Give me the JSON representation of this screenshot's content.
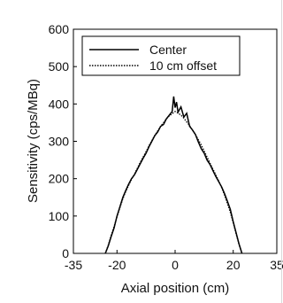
{
  "chart_data": {
    "type": "line",
    "xlabel": "Axial position (cm)",
    "ylabel": "Sensitivity (cps/MBq)",
    "xlim": [
      -35,
      35
    ],
    "ylim": [
      0,
      600
    ],
    "xticks": [
      -35,
      -20,
      0,
      20,
      35
    ],
    "yticks": [
      0,
      100,
      200,
      300,
      400,
      500,
      600
    ],
    "grid": false,
    "legend_position": "top-right",
    "series": [
      {
        "name": "Center",
        "style": "solid",
        "color": "#000000",
        "points": [
          [
            -24,
            0
          ],
          [
            -23,
            20
          ],
          [
            -22,
            45
          ],
          [
            -21,
            68
          ],
          [
            -20,
            100
          ],
          [
            -19,
            125
          ],
          [
            -18,
            150
          ],
          [
            -17,
            168
          ],
          [
            -16,
            185
          ],
          [
            -15,
            200
          ],
          [
            -14,
            210
          ],
          [
            -13,
            225
          ],
          [
            -12,
            240
          ],
          [
            -11,
            255
          ],
          [
            -10,
            268
          ],
          [
            -9,
            285
          ],
          [
            -8,
            300
          ],
          [
            -7,
            315
          ],
          [
            -6,
            325
          ],
          [
            -5,
            340
          ],
          [
            -4,
            345
          ],
          [
            -3,
            360
          ],
          [
            -2,
            370
          ],
          [
            -1,
            380
          ],
          [
            -0.5,
            420
          ],
          [
            0,
            390
          ],
          [
            0.5,
            405
          ],
          [
            1,
            378
          ],
          [
            2,
            392
          ],
          [
            3,
            365
          ],
          [
            4,
            375
          ],
          [
            5,
            340
          ],
          [
            6,
            330
          ],
          [
            7,
            318
          ],
          [
            8,
            298
          ],
          [
            9,
            280
          ],
          [
            10,
            268
          ],
          [
            11,
            250
          ],
          [
            12,
            238
          ],
          [
            13,
            222
          ],
          [
            14,
            206
          ],
          [
            15,
            192
          ],
          [
            16,
            178
          ],
          [
            17,
            160
          ],
          [
            18,
            140
          ],
          [
            19,
            118
          ],
          [
            20,
            85
          ],
          [
            21,
            55
          ],
          [
            22,
            25
          ],
          [
            23,
            0
          ]
        ]
      },
      {
        "name": "10 cm offset",
        "style": "dotted",
        "color": "#000000",
        "points": [
          [
            -24,
            0
          ],
          [
            -23,
            22
          ],
          [
            -22,
            48
          ],
          [
            -21,
            72
          ],
          [
            -20,
            98
          ],
          [
            -19,
            122
          ],
          [
            -18,
            146
          ],
          [
            -17,
            165
          ],
          [
            -16,
            182
          ],
          [
            -15,
            198
          ],
          [
            -14,
            212
          ],
          [
            -13,
            228
          ],
          [
            -12,
            244
          ],
          [
            -11,
            258
          ],
          [
            -10,
            272
          ],
          [
            -9,
            288
          ],
          [
            -8,
            302
          ],
          [
            -7,
            316
          ],
          [
            -6,
            328
          ],
          [
            -5,
            340
          ],
          [
            -4,
            350
          ],
          [
            -3,
            360
          ],
          [
            -2,
            368
          ],
          [
            -1,
            374
          ],
          [
            0,
            380
          ],
          [
            1,
            376
          ],
          [
            2,
            370
          ],
          [
            3,
            362
          ],
          [
            4,
            352
          ],
          [
            5,
            342
          ],
          [
            6,
            330
          ],
          [
            7,
            318
          ],
          [
            8,
            304
          ],
          [
            9,
            290
          ],
          [
            10,
            274
          ],
          [
            11,
            258
          ],
          [
            12,
            242
          ],
          [
            13,
            226
          ],
          [
            14,
            210
          ],
          [
            15,
            194
          ],
          [
            16,
            176
          ],
          [
            17,
            156
          ],
          [
            18,
            134
          ],
          [
            19,
            110
          ],
          [
            20,
            82
          ],
          [
            21,
            52
          ],
          [
            22,
            24
          ],
          [
            23,
            0
          ]
        ]
      }
    ]
  }
}
